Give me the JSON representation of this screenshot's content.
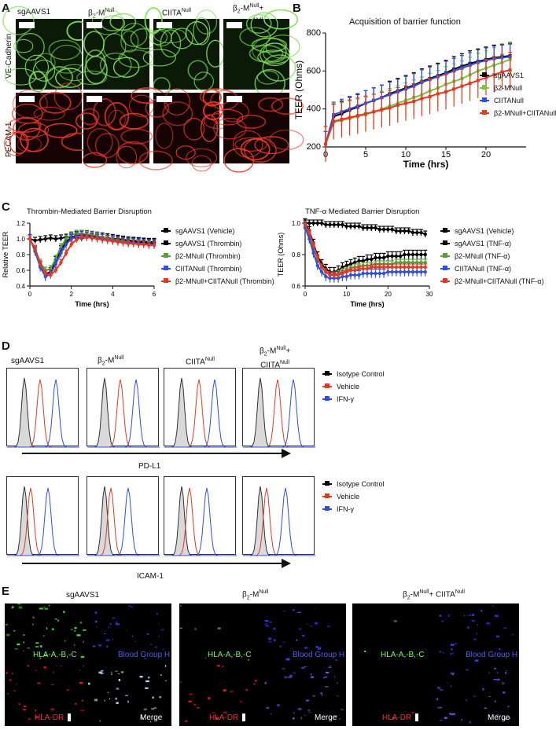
{
  "panelA": {
    "letter": "A",
    "columns": [
      "sgAAVS1",
      "β2-MNull",
      "CIITANull",
      "β2-MNull+ CIITANull"
    ],
    "rows": [
      "VE-Cadherin",
      "PECAM-1"
    ]
  },
  "panelB": {
    "letter": "B",
    "title": "Acquisition of barrier function",
    "xlabel": "Time (hrs)",
    "ylabel": "TEER (Ohms)",
    "legend": [
      "sgAAVS1",
      "β2-MNull",
      "CIITANull",
      "β2-MNull+CIITANull"
    ],
    "colors": [
      "#000000",
      "#7ec242",
      "#2f4fe0",
      "#e5391f"
    ]
  },
  "panelC": {
    "letter": "C",
    "left": {
      "title": "Thrombin-Mediated Barrier Disruption",
      "xlabel": "Time (hrs)",
      "ylabel": "Relative TEER",
      "legend": [
        "sgAAVS1 (Vehicle)",
        "sgAAVS1 (Thrombin)",
        "β2-MNull (Thrombin)",
        "CIITANull (Thrombin)",
        "β2-MNull+CIITANull (Thrombin)"
      ],
      "colors": [
        "#000000",
        "#000000",
        "#5aa03a",
        "#2f4fe0",
        "#e5391f"
      ]
    },
    "right": {
      "title": "TNF-α Mediated Barrier Disruption",
      "xlabel": "Time (hrs)",
      "ylabel": "TEER (Ohms)",
      "legend": [
        "sgAAVS1 (Vehicle)",
        "sgAAVS1 (TNF-α)",
        "β2-MNull (TNF-α)",
        "CIITANull (TNF-α)",
        "β2-MNull+CIITANull (TNF-α)"
      ],
      "colors": [
        "#000000",
        "#000000",
        "#5aa03a",
        "#2f4fe0",
        "#e5391f"
      ]
    }
  },
  "panelD": {
    "letter": "D",
    "columns": [
      "sgAAVS1",
      "β2-MNull",
      "CIITANull",
      "β2-MNull+ CIITANull"
    ],
    "axis1": "PD-L1",
    "axis2": "ICAM-1",
    "legend": [
      "Isotype Control",
      "Vehicle",
      "IFN-γ"
    ],
    "colors": [
      "#000000",
      "#e5391f",
      "#2f4fe0"
    ]
  },
  "panelE": {
    "letter": "E",
    "columns": [
      "sgAAVS1",
      "β2-MNull",
      "β2-MNull+ CIITANull"
    ],
    "labels": {
      "green": "HLA-A,-B,-C",
      "blue": "Blood Group H",
      "red": "HLA-DR",
      "merge": "Merge"
    }
  },
  "chart_data": [
    {
      "type": "line",
      "title": "Acquisition of barrier function",
      "xlabel": "Time (hrs)",
      "ylabel": "TEER (Ohms)",
      "xlim": [
        0,
        25
      ],
      "ylim": [
        200,
        800
      ],
      "xticks": [
        0,
        5,
        10,
        15,
        20
      ],
      "yticks": [
        200,
        400,
        600,
        800
      ],
      "x": [
        0,
        1,
        2,
        3,
        4,
        5,
        6,
        7,
        8,
        9,
        10,
        11,
        12,
        13,
        14,
        15,
        16,
        17,
        18,
        19,
        20,
        21,
        22,
        23
      ],
      "series": [
        {
          "name": "sgAAVS1",
          "values": [
            215,
            360,
            375,
            395,
            410,
            430,
            445,
            460,
            480,
            495,
            510,
            525,
            545,
            560,
            575,
            590,
            610,
            625,
            640,
            650,
            660,
            670,
            675,
            680
          ]
        },
        {
          "name": "β2-MNull",
          "values": [
            215,
            330,
            340,
            350,
            360,
            370,
            385,
            400,
            415,
            430,
            445,
            460,
            475,
            495,
            510,
            530,
            545,
            560,
            580,
            600,
            615,
            630,
            645,
            660
          ]
        },
        {
          "name": "CIITANull",
          "values": [
            215,
            370,
            385,
            400,
            415,
            430,
            445,
            460,
            475,
            490,
            505,
            520,
            540,
            555,
            570,
            585,
            600,
            615,
            630,
            645,
            655,
            665,
            670,
            675
          ]
        },
        {
          "name": "β2-MNull+CIITANull",
          "values": [
            215,
            335,
            345,
            355,
            365,
            375,
            385,
            395,
            405,
            420,
            430,
            440,
            455,
            465,
            480,
            490,
            505,
            520,
            535,
            550,
            565,
            580,
            595,
            605
          ]
        }
      ]
    },
    {
      "type": "line",
      "title": "Thrombin-Mediated Barrier Disruption",
      "xlabel": "Time (hrs)",
      "ylabel": "Relative TEER",
      "xlim": [
        0,
        6
      ],
      "ylim": [
        0.4,
        1.2
      ],
      "xticks": [
        0,
        2,
        4,
        6
      ],
      "yticks": [
        0.4,
        0.6,
        0.8,
        1.0,
        1.2
      ],
      "x": [
        0,
        0.25,
        0.5,
        0.75,
        1,
        1.25,
        1.5,
        1.75,
        2,
        2.25,
        2.5,
        2.75,
        3,
        3.25,
        3.5,
        3.75,
        4,
        4.25,
        4.5,
        4.75,
        5,
        5.25,
        5.5,
        5.75,
        6
      ],
      "series": [
        {
          "name": "sgAAVS1 (Vehicle)",
          "values": [
            1.0,
            0.98,
            0.99,
            1.0,
            1.01,
            1.0,
            1.01,
            1.02,
            1.02,
            1.01,
            1.01,
            1.02,
            1.03,
            1.02,
            1.02,
            1.01,
            1.0,
            1.0,
            0.99,
            0.98,
            0.98,
            0.97,
            0.97,
            0.96,
            0.96
          ]
        },
        {
          "name": "sgAAVS1 (Thrombin)",
          "values": [
            1.0,
            0.86,
            0.66,
            0.55,
            0.58,
            0.72,
            0.86,
            0.96,
            1.02,
            1.04,
            1.05,
            1.05,
            1.04,
            1.03,
            1.02,
            1.01,
            1.0,
            0.99,
            0.98,
            0.97,
            0.96,
            0.96,
            0.95,
            0.95,
            0.95
          ]
        },
        {
          "name": "β2-MNull (Thrombin)",
          "values": [
            1.0,
            0.88,
            0.7,
            0.6,
            0.62,
            0.75,
            0.9,
            1.0,
            1.05,
            1.07,
            1.07,
            1.06,
            1.05,
            1.04,
            1.02,
            1.0,
            0.99,
            0.98,
            0.97,
            0.96,
            0.95,
            0.94,
            0.93,
            0.93,
            0.92
          ]
        },
        {
          "name": "CIITANull (Thrombin)",
          "values": [
            1.0,
            0.84,
            0.64,
            0.52,
            0.55,
            0.68,
            0.82,
            0.93,
            1.0,
            1.03,
            1.04,
            1.03,
            1.02,
            1.01,
            1.0,
            0.99,
            0.98,
            0.97,
            0.96,
            0.95,
            0.95,
            0.94,
            0.94,
            0.93,
            0.93
          ]
        },
        {
          "name": "β2-MNull+CIITANull (Thrombin)",
          "values": [
            1.0,
            0.87,
            0.68,
            0.56,
            0.54,
            0.6,
            0.7,
            0.82,
            0.93,
            0.99,
            1.02,
            1.02,
            1.01,
            1.0,
            0.99,
            0.98,
            0.97,
            0.96,
            0.95,
            0.94,
            0.94,
            0.93,
            0.93,
            0.92,
            0.92
          ]
        }
      ]
    },
    {
      "type": "line",
      "title": "TNF-α Mediated Barrier Disruption",
      "xlabel": "Time (hrs)",
      "ylabel": "TEER (Ohms)",
      "xlim": [
        0,
        30
      ],
      "ylim": [
        0.6,
        1.0
      ],
      "xticks": [
        0,
        10,
        20,
        30
      ],
      "yticks": [
        0.6,
        0.8,
        1.0
      ],
      "x": [
        0,
        1,
        2,
        3,
        4,
        5,
        6,
        7,
        8,
        9,
        10,
        11,
        12,
        13,
        14,
        15,
        16,
        17,
        18,
        19,
        20,
        21,
        22,
        23,
        24,
        25,
        26,
        27,
        28,
        29
      ],
      "series": [
        {
          "name": "sgAAVS1 (Vehicle)",
          "values": [
            1.0,
            1.0,
            1.0,
            1.0,
            1.0,
            0.99,
            0.99,
            0.99,
            0.99,
            0.99,
            0.98,
            0.98,
            0.98,
            0.98,
            0.97,
            0.97,
            0.97,
            0.97,
            0.96,
            0.96,
            0.96,
            0.96,
            0.95,
            0.95,
            0.95,
            0.95,
            0.94,
            0.94,
            0.94,
            0.93
          ]
        },
        {
          "name": "sgAAVS1 (TNF-α)",
          "values": [
            1.0,
            0.95,
            0.87,
            0.79,
            0.74,
            0.71,
            0.69,
            0.69,
            0.7,
            0.72,
            0.73,
            0.74,
            0.75,
            0.76,
            0.76,
            0.77,
            0.77,
            0.78,
            0.78,
            0.78,
            0.79,
            0.79,
            0.79,
            0.79,
            0.8,
            0.8,
            0.8,
            0.8,
            0.8,
            0.8
          ]
        },
        {
          "name": "β2-MNull (TNF-α)",
          "values": [
            0.98,
            0.93,
            0.85,
            0.77,
            0.72,
            0.69,
            0.67,
            0.67,
            0.68,
            0.69,
            0.7,
            0.71,
            0.72,
            0.72,
            0.73,
            0.73,
            0.73,
            0.74,
            0.74,
            0.74,
            0.74,
            0.74,
            0.75,
            0.75,
            0.75,
            0.75,
            0.75,
            0.75,
            0.75,
            0.75
          ]
        },
        {
          "name": "CIITANull (TNF-α)",
          "values": [
            0.97,
            0.9,
            0.81,
            0.73,
            0.69,
            0.66,
            0.65,
            0.65,
            0.65,
            0.66,
            0.66,
            0.67,
            0.67,
            0.67,
            0.68,
            0.68,
            0.68,
            0.68,
            0.68,
            0.68,
            0.69,
            0.69,
            0.69,
            0.69,
            0.69,
            0.69,
            0.69,
            0.69,
            0.69,
            0.69
          ]
        },
        {
          "name": "β2-MNull+CIITANull (TNF-α)",
          "values": [
            0.99,
            0.94,
            0.86,
            0.78,
            0.72,
            0.69,
            0.67,
            0.67,
            0.67,
            0.68,
            0.69,
            0.7,
            0.7,
            0.71,
            0.71,
            0.71,
            0.72,
            0.72,
            0.72,
            0.72,
            0.72,
            0.72,
            0.72,
            0.72,
            0.72,
            0.72,
            0.72,
            0.72,
            0.72,
            0.72
          ]
        }
      ]
    }
  ]
}
